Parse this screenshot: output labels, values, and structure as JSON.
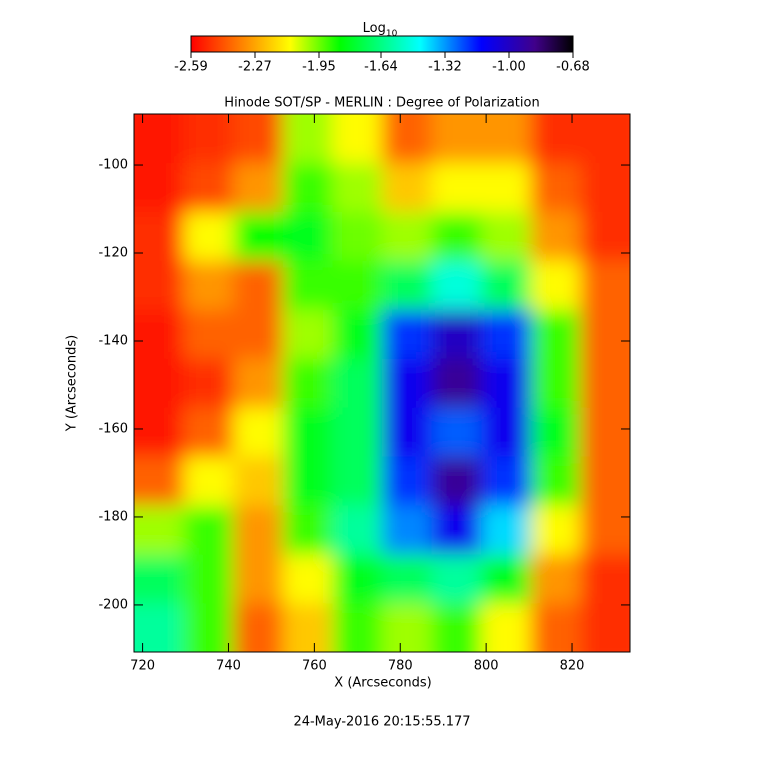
{
  "chart_data": {
    "type": "heatmap",
    "title": "Hinode SOT/SP - MERLIN : Degree of Polarization",
    "x_label": "X (Arcseconds)",
    "y_label": "Y (Arcseconds)",
    "timestamp": "24-May-2016 20:15:55.177",
    "colorbar_label": "Log",
    "colorbar_label_sub": "10",
    "clim": [
      -2.59,
      -0.68
    ],
    "cticks": [
      -2.59,
      -2.27,
      -1.95,
      -1.64,
      -1.32,
      {
        "value": -1,
        "label": "-1.00"
      },
      -0.68
    ],
    "xlim": [
      718,
      833.5
    ],
    "ylim": [
      -210.7,
      -88.4
    ],
    "xticks": [
      720,
      740,
      760,
      780,
      800,
      820
    ],
    "yticks": [
      -100,
      -120,
      -140,
      -160,
      -180,
      -200
    ],
    "x": [
      723.8,
      735.3,
      746.9,
      758.4,
      770.0,
      781.5,
      793.1,
      804.6,
      816.2,
      827.7
    ],
    "y": [
      -94,
      -105.1,
      -116.2,
      -127.3,
      -138.5,
      -149.6,
      -160.7,
      -171.8,
      -183.0,
      -194.1,
      -205.2
    ],
    "values": [
      [
        -2.55,
        -2.5,
        -2.45,
        -2.0,
        -2.1,
        -2.4,
        -2.3,
        -2.3,
        -2.5,
        -2.5
      ],
      [
        -2.55,
        -2.45,
        -2.3,
        -1.9,
        -2.0,
        -2.2,
        -2.1,
        -2.1,
        -2.4,
        -2.5
      ],
      [
        -2.5,
        -2.1,
        -1.85,
        -1.8,
        -1.95,
        -2.0,
        -1.9,
        -2.0,
        -2.3,
        -2.5
      ],
      [
        -2.5,
        -2.3,
        -2.4,
        -1.9,
        -1.9,
        -1.7,
        -1.5,
        -1.7,
        -2.1,
        -2.4
      ],
      [
        -2.55,
        -2.4,
        -2.4,
        -2.0,
        -1.8,
        -1.2,
        -1.0,
        -1.2,
        -1.9,
        -2.4
      ],
      [
        -2.55,
        -2.5,
        -2.3,
        -1.9,
        -1.7,
        -1.1,
        -0.9,
        -1.1,
        -1.9,
        -2.4
      ],
      [
        -2.55,
        -2.4,
        -2.1,
        -1.8,
        -1.7,
        -1.1,
        -1.25,
        -1.1,
        -1.8,
        -2.4
      ],
      [
        -2.4,
        -2.1,
        -2.2,
        -1.8,
        -1.7,
        -1.2,
        -0.9,
        -1.2,
        -1.9,
        -2.4
      ],
      [
        -2.0,
        -1.9,
        -2.3,
        -1.9,
        -1.6,
        -1.3,
        -1.1,
        -1.4,
        -2.1,
        -2.4
      ],
      [
        -1.7,
        -1.9,
        -2.3,
        -2.1,
        -1.8,
        -1.7,
        -1.6,
        -1.8,
        -2.3,
        -2.5
      ],
      [
        -1.6,
        -1.9,
        -2.4,
        -2.2,
        -1.9,
        -2.0,
        -1.9,
        -2.1,
        -2.4,
        -2.5
      ]
    ]
  }
}
